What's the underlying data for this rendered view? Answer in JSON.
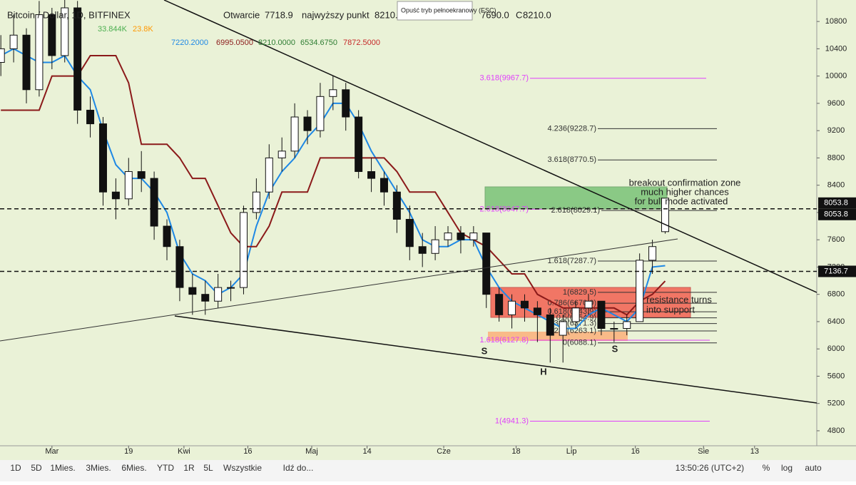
{
  "header": {
    "symbol": "Bitcoin / Dollar, 1D, BITFINEX",
    "open_label": "Otwarcie",
    "open": "7718.9",
    "high_label": "najwyższy punkt",
    "high": "8210.0",
    "low": "7690.0",
    "close_label": "C",
    "close": "8210.0",
    "volume_values": [
      "33.844K",
      "23.8K"
    ],
    "ichimoku_values": [
      "7220.2000",
      "6995.0500",
      "8210.0000",
      "6534.6750",
      "7872.5000"
    ],
    "tooltip": "Opuść tryb pełnoekranowy (ESC)"
  },
  "toolbar": {
    "ranges": [
      "1D",
      "5D",
      "1Mies.",
      "3Mies.",
      "6Mies.",
      "YTD",
      "1R",
      "5L",
      "Wszystkie",
      "Idź do..."
    ],
    "time": "13:50:26 (UTC+2)",
    "options": [
      "%",
      "log",
      "auto"
    ]
  },
  "chart_data": {
    "type": "candlestick",
    "xlim": [
      -12.2,
      179.6
    ],
    "xticks": [
      {
        "value": 0,
        "label": "Mar"
      },
      {
        "value": 18,
        "label": "19"
      },
      {
        "value": 31,
        "label": "Kwi"
      },
      {
        "value": 46,
        "label": "16"
      },
      {
        "value": 61,
        "label": "Maj"
      },
      {
        "value": 74,
        "label": "14"
      },
      {
        "value": 92,
        "label": "Cze"
      },
      {
        "value": 109,
        "label": "18"
      },
      {
        "value": 122,
        "label": "Lip"
      },
      {
        "value": 137,
        "label": "16"
      },
      {
        "value": 153,
        "label": "Sie"
      },
      {
        "value": 165,
        "label": "13"
      }
    ],
    "ylim": [
      4580,
      11115
    ],
    "yticks": [
      4800,
      5200,
      5600,
      6000,
      6400,
      6800,
      7200,
      7600,
      8000,
      8400,
      8800,
      9200,
      9600,
      10000,
      10400,
      10800
    ],
    "grid": false,
    "x": [
      -12,
      -9,
      -6,
      -3,
      0,
      3,
      6,
      9,
      12,
      15,
      18,
      21,
      24,
      27,
      30,
      33,
      36,
      39,
      42,
      45,
      48,
      51,
      54,
      57,
      60,
      63,
      66,
      69,
      72,
      75,
      78,
      81,
      84,
      87,
      90,
      93,
      96,
      99,
      102,
      105,
      108,
      111,
      114,
      117,
      120,
      123,
      126,
      129,
      132,
      135,
      138,
      141,
      144
    ],
    "ohlc": [
      [
        10200,
        10600,
        10000,
        10400
      ],
      [
        10400,
        10900,
        10200,
        10600
      ],
      [
        10600,
        10700,
        9600,
        9800
      ],
      [
        9800,
        11100,
        9700,
        10900
      ],
      [
        10900,
        11000,
        10100,
        10300
      ],
      [
        10300,
        11200,
        10200,
        11000
      ],
      [
        11000,
        11100,
        9300,
        9500
      ],
      [
        9500,
        9700,
        9100,
        9300
      ],
      [
        9300,
        9400,
        8100,
        8300
      ],
      [
        8300,
        8500,
        7900,
        8200
      ],
      [
        8200,
        8800,
        8100,
        8600
      ],
      [
        8600,
        8900,
        8300,
        8500
      ],
      [
        8500,
        8600,
        7600,
        7800
      ],
      [
        7800,
        7900,
        7300,
        7500
      ],
      [
        7500,
        7600,
        6700,
        6900
      ],
      [
        6900,
        7100,
        6500,
        6800
      ],
      [
        6800,
        7000,
        6500,
        6700
      ],
      [
        6700,
        7100,
        6600,
        6900
      ],
      [
        6900,
        7000,
        6700,
        6900
      ],
      [
        6900,
        8100,
        6800,
        8000
      ],
      [
        8000,
        8500,
        7900,
        8300
      ],
      [
        8300,
        9000,
        8200,
        8800
      ],
      [
        8800,
        9100,
        8600,
        8900
      ],
      [
        8900,
        9600,
        8800,
        9400
      ],
      [
        9400,
        9500,
        9000,
        9200
      ],
      [
        9200,
        9900,
        9100,
        9700
      ],
      [
        9700,
        10000,
        9500,
        9800
      ],
      [
        9800,
        9900,
        9200,
        9400
      ],
      [
        9400,
        9500,
        8500,
        8600
      ],
      [
        8600,
        8800,
        8300,
        8500
      ],
      [
        8500,
        8600,
        8100,
        8300
      ],
      [
        8300,
        8400,
        7700,
        7900
      ],
      [
        7900,
        8100,
        7300,
        7500
      ],
      [
        7500,
        7700,
        7200,
        7400
      ],
      [
        7400,
        7800,
        7300,
        7600
      ],
      [
        7600,
        7800,
        7500,
        7700
      ],
      [
        7700,
        7800,
        7400,
        7600
      ],
      [
        7600,
        7800,
        7500,
        7700
      ],
      [
        7700,
        7700,
        6600,
        6800
      ],
      [
        6800,
        6900,
        6400,
        6500
      ],
      [
        6500,
        6800,
        6300,
        6700
      ],
      [
        6700,
        6800,
        6400,
        6600
      ],
      [
        6600,
        6700,
        6100,
        6500
      ],
      [
        6500,
        6600,
        5800,
        6200
      ],
      [
        6200,
        6500,
        5800,
        6400
      ],
      [
        6400,
        6700,
        6300,
        6600
      ],
      [
        6600,
        6800,
        6500,
        6700
      ],
      [
        6700,
        6700,
        6200,
        6300
      ],
      [
        6300,
        6400,
        6100,
        6300
      ],
      [
        6300,
        6500,
        6200,
        6400
      ],
      [
        6400,
        7400,
        6400,
        7300
      ],
      [
        7300,
        7600,
        7100,
        7500
      ],
      [
        7718.9,
        8210,
        7690,
        8210
      ]
    ],
    "series": [
      {
        "color": "#1e88e5",
        "values": [
          10300,
          10400,
          10300,
          10200,
          10200,
          10300,
          10000,
          9800,
          9200,
          8700,
          8500,
          8500,
          8300,
          8000,
          7400,
          7100,
          7000,
          6800,
          6900,
          7100,
          7800,
          8300,
          8600,
          8800,
          9100,
          9300,
          9600,
          9600,
          9300,
          8900,
          8600,
          8300,
          8000,
          7600,
          7500,
          7500,
          7600,
          7600,
          7200,
          6900,
          6700,
          6600,
          6500,
          6400,
          6300,
          6300,
          6500,
          6600,
          6500,
          6400,
          6600,
          7200,
          7220.2
        ]
      },
      {
        "color": "#8b1a1a",
        "values": [
          9500,
          9500,
          9500,
          9500,
          10000,
          10000,
          10000,
          10300,
          10300,
          10300,
          9900,
          9000,
          9000,
          9000,
          8800,
          8500,
          8500,
          8100,
          7700,
          7500,
          7500,
          7800,
          8300,
          8300,
          8300,
          8800,
          8800,
          8800,
          8800,
          8800,
          8800,
          8600,
          8300,
          8300,
          8300,
          8000,
          7700,
          7600,
          7500,
          7300,
          7100,
          7100,
          6800,
          6700,
          6600,
          6600,
          6600,
          6600,
          6600,
          6500,
          6700,
          6800,
          6995.05
        ]
      }
    ],
    "hlines": [
      8053.8,
      7136.7
    ],
    "fib_levels": [
      {
        "value": 9967.7,
        "label": "3.618(9967.7)",
        "color": "#e040fb"
      },
      {
        "value": 9228.7,
        "label": "4.236(9228.7)",
        "color": "#333333"
      },
      {
        "value": 8770.5,
        "label": "3.618(8770.5)",
        "color": "#333333"
      },
      {
        "value": 8047.7,
        "label": "2.618(8047.7)",
        "color": "#e040fb"
      },
      {
        "value": 8029.1,
        "label": "2.618(8029.1)",
        "color": "#333333"
      },
      {
        "value": 7287.7,
        "label": "1.618(7287.7)",
        "color": "#333333"
      },
      {
        "value": 6829.5,
        "label": "1(6829.5)",
        "color": "#333333"
      },
      {
        "value": 6670.0,
        "label": "0.786(6670.0)",
        "color": "#333333"
      },
      {
        "value": 6543.9,
        "label": "0.618(6543.9)",
        "color": "#333333"
      },
      {
        "value": 6454.9,
        "label": "0.5(6454.9)",
        "color": "#333333"
      },
      {
        "value": 6371.3,
        "label": "0.382(6371.3)",
        "color": "#333333"
      },
      {
        "value": 6263.1,
        "label": "0.236(6263.1)",
        "color": "#333333"
      },
      {
        "value": 6127.8,
        "label": "1.618(6127.8)",
        "color": "#e040fb"
      },
      {
        "value": 6088.1,
        "label": "0(6088.1)",
        "color": "#333333"
      },
      {
        "value": 4941.3,
        "label": "1(4941.3)",
        "color": "#e040fb"
      }
    ],
    "annotations": [
      "breakout confirmation zone",
      "much higher chances",
      "for bull mode activated",
      "resistance turns",
      "into support",
      "S",
      "H",
      "S"
    ]
  }
}
